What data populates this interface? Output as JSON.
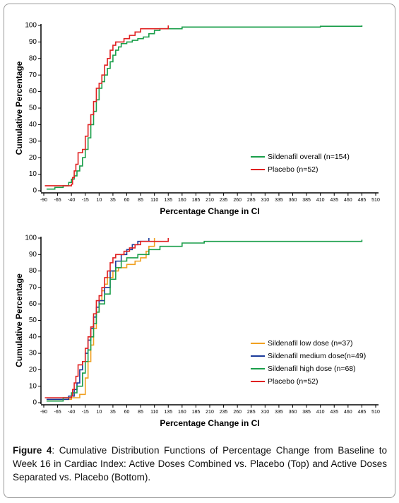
{
  "chart_data": [
    {
      "type": "line",
      "step": true,
      "xlabel": "Percentage Change in CI",
      "ylabel": "Cumulative Percentage",
      "xlim": [
        -90,
        510
      ],
      "xticks": [
        -90,
        -65,
        -40,
        -15,
        10,
        35,
        60,
        85,
        110,
        135,
        160,
        185,
        210,
        235,
        260,
        285,
        310,
        335,
        360,
        385,
        410,
        435,
        460,
        485,
        510
      ],
      "ylim": [
        0,
        100
      ],
      "yticks": [
        0,
        10,
        20,
        30,
        40,
        50,
        60,
        70,
        80,
        90,
        100
      ],
      "legend": "lower right",
      "series": [
        {
          "name": "Sildenafil overall (n=154)",
          "color": "#1a9e4a",
          "x": [
            -85,
            -70,
            -55,
            -45,
            -40,
            -35,
            -30,
            -25,
            -20,
            -15,
            -10,
            -5,
            0,
            5,
            10,
            15,
            20,
            25,
            30,
            35,
            40,
            45,
            50,
            60,
            70,
            80,
            90,
            100,
            110,
            120,
            160,
            410,
            485
          ],
          "values": [
            1,
            2,
            3,
            5,
            7,
            9,
            12,
            15,
            20,
            25,
            32,
            40,
            48,
            55,
            62,
            66,
            70,
            74,
            78,
            82,
            85,
            87,
            89,
            90,
            91,
            92,
            93,
            95,
            97,
            98,
            99,
            99.5,
            100
          ]
        },
        {
          "name": "Placebo (n=52)",
          "color": "#e02020",
          "x": [
            -88,
            -40,
            -38,
            -35,
            -32,
            -28,
            -20,
            -15,
            -10,
            -5,
            0,
            5,
            10,
            15,
            20,
            25,
            30,
            35,
            40,
            55,
            65,
            75,
            85,
            135
          ],
          "values": [
            3,
            4,
            8,
            12,
            16,
            23,
            25,
            33,
            40,
            46,
            54,
            62,
            65,
            70,
            76,
            80,
            85,
            88,
            90,
            92,
            94,
            96,
            98,
            100
          ]
        }
      ]
    },
    {
      "type": "line",
      "step": true,
      "xlabel": "Percentage Change in CI",
      "ylabel": "Cumulative Percentage",
      "xlim": [
        -90,
        510
      ],
      "xticks": [
        -90,
        -65,
        -40,
        -15,
        10,
        35,
        60,
        85,
        110,
        135,
        160,
        185,
        210,
        235,
        260,
        285,
        310,
        335,
        360,
        385,
        410,
        435,
        460,
        485,
        510
      ],
      "ylim": [
        0,
        100
      ],
      "yticks": [
        0,
        10,
        20,
        30,
        40,
        50,
        60,
        70,
        80,
        90,
        100
      ],
      "legend": "lower right",
      "series": [
        {
          "name": "Sildenafil low dose (n=37)",
          "color": "#f0a020",
          "x": [
            -85,
            -40,
            -25,
            -15,
            -10,
            -5,
            0,
            5,
            10,
            15,
            20,
            25,
            35,
            45,
            60,
            75,
            85,
            95,
            100,
            110
          ],
          "values": [
            2,
            3,
            5,
            15,
            25,
            35,
            45,
            55,
            62,
            68,
            72,
            76,
            80,
            82,
            84,
            86,
            88,
            92,
            95,
            100
          ]
        },
        {
          "name": "Sildenafil medium dose(n=49)",
          "color": "#1a3a9a",
          "x": [
            -85,
            -45,
            -35,
            -30,
            -25,
            -20,
            -15,
            -10,
            -5,
            0,
            5,
            10,
            20,
            30,
            40,
            50,
            60,
            70,
            80,
            100
          ],
          "values": [
            2,
            4,
            8,
            12,
            20,
            25,
            30,
            38,
            45,
            52,
            58,
            62,
            70,
            80,
            86,
            90,
            93,
            96,
            98,
            100
          ]
        },
        {
          "name": "Sildenafil high dose (n=68)",
          "color": "#1a9e4a",
          "x": [
            -85,
            -55,
            -40,
            -30,
            -20,
            -15,
            -10,
            -5,
            0,
            5,
            10,
            20,
            30,
            40,
            50,
            60,
            80,
            100,
            120,
            160,
            200,
            485
          ],
          "values": [
            1,
            3,
            6,
            10,
            18,
            25,
            32,
            40,
            48,
            55,
            60,
            66,
            75,
            82,
            86,
            88,
            90,
            93,
            95,
            97,
            98,
            99
          ]
        },
        {
          "name": "Placebo (n=52)",
          "color": "#e02020",
          "x": [
            -88,
            -40,
            -38,
            -35,
            -32,
            -28,
            -20,
            -15,
            -10,
            -5,
            0,
            5,
            10,
            15,
            20,
            25,
            30,
            35,
            40,
            55,
            65,
            75,
            85,
            135
          ],
          "values": [
            3,
            4,
            8,
            12,
            16,
            23,
            25,
            33,
            40,
            46,
            54,
            62,
            65,
            70,
            76,
            80,
            85,
            88,
            90,
            92,
            94,
            96,
            98,
            100
          ]
        }
      ]
    }
  ],
  "caption": {
    "label": "Figure 4",
    "text": ": Cumulative Distribution Functions of Percentage Change from Baseline to Week 16 in Cardiac Index: Active Doses Combined vs. Placebo (Top) and Active Doses Separated vs. Placebo (Bottom)."
  }
}
